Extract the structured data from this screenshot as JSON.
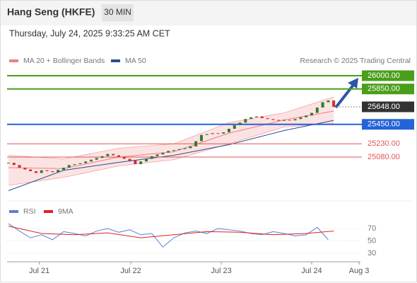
{
  "header": {
    "title": "Hang Seng (HKFE)",
    "interval": "30 MIN",
    "timestamp": "Thursday, July 24, 2025 9:33:25 AM CET"
  },
  "chart_data": [
    {
      "type": "candlestick",
      "source": "Research © 2025 Trading Central",
      "color_up": "#2e7d32",
      "color_down": "#d32f2f",
      "x": [
        0,
        1,
        2,
        3,
        4,
        5,
        6,
        7,
        8,
        9,
        10,
        11,
        12,
        13,
        14,
        15,
        16,
        17,
        18,
        19,
        20,
        21,
        22,
        23,
        24,
        25,
        26,
        27,
        28,
        29,
        30,
        31,
        32,
        33,
        34,
        35,
        36,
        37,
        38,
        39,
        40,
        41,
        42,
        43,
        44,
        45,
        46,
        47,
        48,
        49,
        50,
        51,
        52,
        53,
        54,
        55,
        56,
        57,
        58,
        59
      ],
      "values": [
        25016,
        24990,
        24960,
        24940,
        24920,
        24900,
        24930,
        24920,
        24910,
        24935,
        24960,
        24990,
        25000,
        25010,
        25030,
        25050,
        25070,
        25090,
        25115,
        25100,
        25080,
        25060,
        25040,
        25000,
        25030,
        25060,
        25090,
        25110,
        25130,
        25150,
        25160,
        25170,
        25180,
        25200,
        25260,
        25330,
        25340,
        25350,
        25345,
        25360,
        25400,
        25440,
        25470,
        25510,
        25530,
        25540,
        25520,
        25510,
        25500,
        25490,
        25500,
        25495,
        25510,
        25530,
        25550,
        25580,
        25640,
        25700,
        25720,
        25648
      ],
      "overlays": [
        {
          "name": "MA 20 + Bollinger Bands",
          "color": "#f08080",
          "x": [
            0,
            10,
            20,
            30,
            40,
            50,
            59
          ],
          "values": [
            24960,
            24950,
            25080,
            25140,
            25350,
            25500,
            25600
          ],
          "upper": [
            25100,
            25060,
            25180,
            25230,
            25470,
            25580,
            25760
          ],
          "lower": [
            24760,
            24850,
            24980,
            25050,
            25230,
            25420,
            25460
          ]
        },
        {
          "name": "MA 50",
          "color": "#2a4d8f",
          "x": [
            0,
            10,
            20,
            30,
            40,
            50,
            59
          ],
          "values": [
            24700,
            24930,
            25020,
            25100,
            25220,
            25380,
            25495
          ]
        }
      ],
      "levels": [
        {
          "value": 26000,
          "label": "26000.00",
          "color": "#4a9e1a",
          "boxed": true
        },
        {
          "value": 25850,
          "label": "25850.00",
          "color": "#4a9e1a",
          "boxed": true
        },
        {
          "value": 25648,
          "label": "25648.00",
          "color": "#333333",
          "boxed": true,
          "dashed": true
        },
        {
          "value": 25450,
          "label": "25450.00",
          "color": "#2563d9",
          "boxed": true
        },
        {
          "value": 25230,
          "label": "25230.00",
          "color": "#e05555",
          "boxed": false
        },
        {
          "value": 25080,
          "label": "25080.00",
          "color": "#e05555",
          "boxed": false
        }
      ],
      "xlim": [
        -0.25,
        63.85
      ],
      "ylim": [
        24560,
        26120
      ]
    },
    {
      "type": "line",
      "series": [
        {
          "name": "RSI",
          "color": "#5b7fd6",
          "x": [
            0,
            2,
            4,
            6,
            8,
            10,
            12,
            14,
            16,
            18,
            20,
            22,
            24,
            26,
            28,
            30,
            32,
            34,
            36,
            38,
            40,
            42,
            44,
            46,
            48,
            50,
            52,
            54,
            56,
            58
          ],
          "values": [
            78,
            66,
            55,
            60,
            52,
            65,
            62,
            58,
            66,
            70,
            64,
            68,
            60,
            62,
            40,
            55,
            63,
            66,
            62,
            70,
            68,
            66,
            62,
            60,
            65,
            62,
            58,
            60,
            72,
            52
          ]
        },
        {
          "name": "9MA",
          "color": "#e02020",
          "x": [
            0,
            6,
            12,
            18,
            24,
            30,
            36,
            42,
            48,
            54,
            59
          ],
          "values": [
            74,
            62,
            60,
            63,
            55,
            60,
            65,
            64,
            60,
            62,
            66
          ]
        }
      ],
      "xlim": [
        -0.25,
        63.85
      ],
      "ylim": [
        15,
        85
      ],
      "yticks": [
        30,
        50,
        70
      ],
      "xticks": [
        {
          "value": 5.6,
          "label": "Jul 21"
        },
        {
          "value": 22.2,
          "label": "Jul 22"
        },
        {
          "value": 38.6,
          "label": "Jul 23"
        },
        {
          "value": 55,
          "label": "Jul 24"
        },
        {
          "value": 63.6,
          "label": "Aug 3"
        }
      ]
    }
  ]
}
